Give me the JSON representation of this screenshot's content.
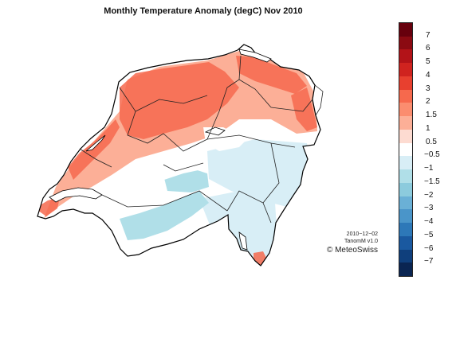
{
  "title": "Monthly Temperature Anomaly (degC) Nov 2010",
  "date": "2010−12−02",
  "product": "TanomM v1.0",
  "copyright": "© MeteoSwiss",
  "legend": {
    "labels": [
      "7",
      "6",
      "5",
      "4",
      "3",
      "2",
      "1.5",
      "1",
      "0.5",
      "−0.5",
      "−1",
      "−1.5",
      "−2",
      "−3",
      "−4",
      "−5",
      "−6",
      "−7"
    ],
    "colors": [
      "#67000d",
      "#8b0a12",
      "#b31318",
      "#d0231f",
      "#e8402f",
      "#f6694d",
      "#fb8d6f",
      "#fcaf97",
      "#fddbd1",
      "#ffffff",
      "#d8eef6",
      "#b0dfe8",
      "#8ccbdd",
      "#6ab0d6",
      "#4a95c9",
      "#2d78b8",
      "#1a59a0",
      "#0f3f7c",
      "#0a2552"
    ]
  },
  "map": {
    "land_fill": "#ffffff",
    "warm_color": "#f6694d",
    "mild_color": "#fcaf97",
    "cool_color": "#b0dfe8",
    "coast_color": "#d8eef6",
    "border_color": "#000000"
  }
}
